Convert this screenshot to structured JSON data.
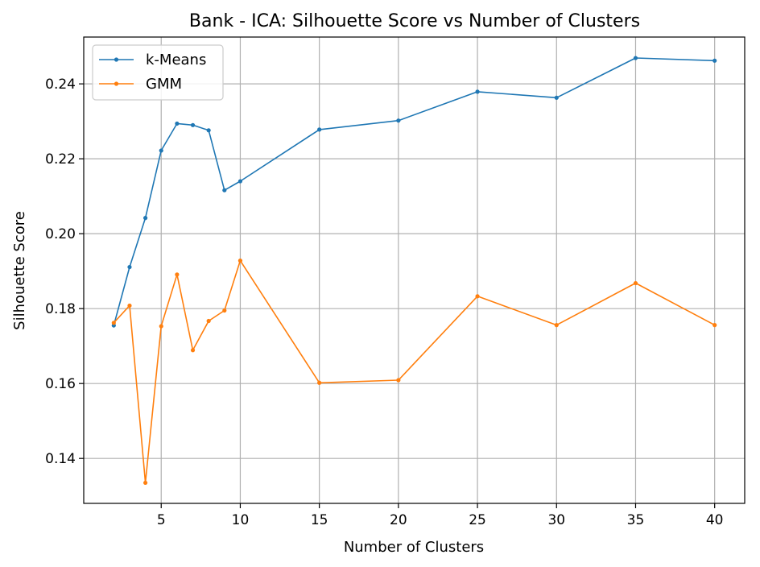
{
  "chart_data": {
    "type": "line",
    "title": "Bank - ICA: Silhouette Score vs Number of Clusters",
    "xlabel": "Number of Clusters",
    "ylabel": "Silhouette Score",
    "xlim": [
      0.1,
      41.9
    ],
    "ylim": [
      0.128,
      0.2525
    ],
    "xticks": [
      5,
      10,
      15,
      20,
      25,
      30,
      35,
      40
    ],
    "yticks": [
      0.14,
      0.16,
      0.18,
      0.2,
      0.22,
      0.24
    ],
    "ytick_labels": [
      "0.14",
      "0.16",
      "0.18",
      "0.20",
      "0.22",
      "0.24"
    ],
    "grid": true,
    "legend_position": "top-left",
    "x": [
      2,
      3,
      4,
      5,
      6,
      7,
      8,
      9,
      10,
      15,
      20,
      25,
      30,
      35,
      40
    ],
    "series": [
      {
        "name": "k-Means",
        "color": "#1f77b4",
        "values": [
          0.1755,
          0.1911,
          0.2042,
          0.2222,
          0.2294,
          0.229,
          0.2276,
          0.2116,
          0.214,
          0.2278,
          0.2302,
          0.2379,
          0.2363,
          0.2469,
          0.2462
        ]
      },
      {
        "name": "GMM",
        "color": "#ff7f0e",
        "values": [
          0.1762,
          0.1808,
          0.1335,
          0.1753,
          0.1891,
          0.1689,
          0.1767,
          0.1795,
          0.1928,
          0.1602,
          0.1609,
          0.1833,
          0.1756,
          0.1868,
          0.1756
        ]
      }
    ]
  }
}
